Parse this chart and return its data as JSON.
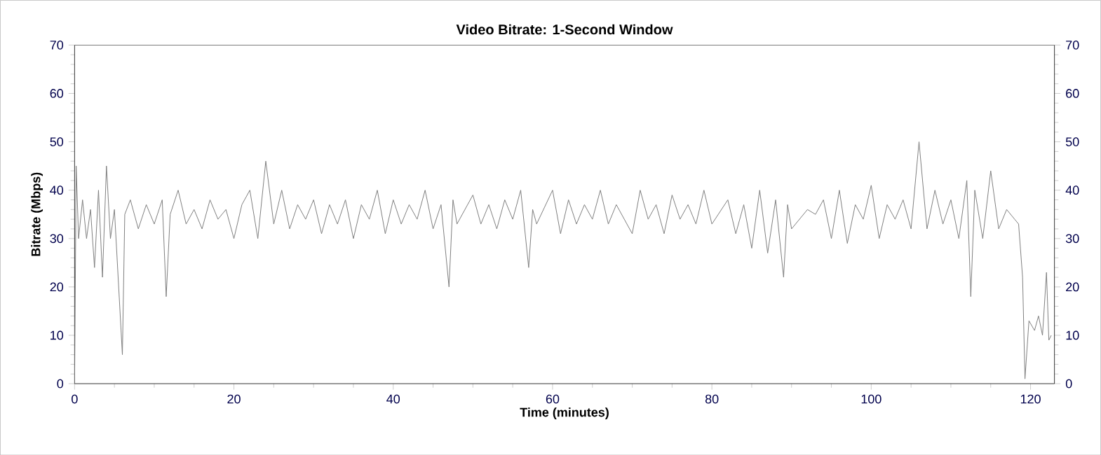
{
  "chart_data": {
    "type": "line",
    "title": "Video Bitrate: 1-Second Window",
    "xlabel": "Time (minutes)",
    "ylabel": "Bitrate (Mbps)",
    "xlim": [
      0,
      123
    ],
    "xticks": [
      0,
      20,
      40,
      60,
      80,
      100,
      120
    ],
    "ylim": [
      0,
      70
    ],
    "yticks": [
      0,
      10,
      20,
      30,
      40,
      50,
      60,
      70
    ],
    "y2lim": [
      0,
      70
    ],
    "y2ticks": [
      0,
      10,
      20,
      30,
      40,
      50,
      60,
      70
    ],
    "grid": false,
    "marker": "none",
    "line_style": "solid",
    "series": [
      {
        "color": "#808080",
        "x": [
          0,
          0.2,
          0.5,
          1,
          1.5,
          2,
          2.5,
          3,
          3.5,
          4,
          4.5,
          5,
          6,
          6.3,
          7,
          8,
          9,
          10,
          11,
          11.5,
          12,
          13,
          14,
          15,
          16,
          17,
          18,
          19,
          20,
          21,
          22,
          23,
          24,
          25,
          26,
          27,
          28,
          29,
          30,
          31,
          32,
          33,
          34,
          35,
          36,
          37,
          38,
          39,
          40,
          41,
          42,
          43,
          44,
          45,
          46,
          47,
          47.5,
          48,
          50,
          51,
          52,
          53,
          54,
          55,
          56,
          57,
          57.5,
          58,
          60,
          61,
          62,
          63,
          64,
          65,
          66,
          67,
          68,
          70,
          71,
          72,
          73,
          74,
          75,
          76,
          77,
          78,
          79,
          80,
          82,
          83,
          84,
          85,
          86,
          87,
          88,
          89,
          89.5,
          90,
          92,
          93,
          94,
          95,
          96,
          97,
          98,
          99,
          100,
          101,
          102,
          103,
          104,
          105,
          106,
          107,
          108,
          109,
          110,
          111,
          112,
          112.5,
          113,
          114,
          115,
          116,
          117,
          118,
          118.5,
          119,
          119.3,
          119.8,
          120.5,
          121,
          121.5,
          122,
          122.3,
          122.6
        ],
        "values": [
          0,
          45,
          30,
          38,
          30,
          36,
          24,
          40,
          22,
          45,
          30,
          36,
          6,
          35,
          38,
          32,
          37,
          33,
          38,
          18,
          35,
          40,
          33,
          36,
          32,
          38,
          34,
          36,
          30,
          37,
          40,
          30,
          46,
          33,
          40,
          32,
          37,
          34,
          38,
          31,
          37,
          33,
          38,
          30,
          37,
          34,
          40,
          31,
          38,
          33,
          37,
          34,
          40,
          32,
          37,
          20,
          38,
          33,
          39,
          33,
          37,
          32,
          38,
          34,
          40,
          24,
          36,
          33,
          40,
          31,
          38,
          33,
          37,
          34,
          40,
          33,
          37,
          31,
          40,
          34,
          37,
          31,
          39,
          34,
          37,
          33,
          40,
          33,
          38,
          31,
          37,
          28,
          40,
          27,
          38,
          22,
          37,
          32,
          36,
          35,
          38,
          30,
          40,
          29,
          37,
          34,
          41,
          30,
          37,
          34,
          38,
          32,
          50,
          32,
          40,
          33,
          38,
          30,
          42,
          18,
          40,
          30,
          44,
          32,
          36,
          34,
          33,
          22,
          1,
          13,
          11,
          14,
          10,
          23,
          9,
          10
        ]
      }
    ]
  }
}
